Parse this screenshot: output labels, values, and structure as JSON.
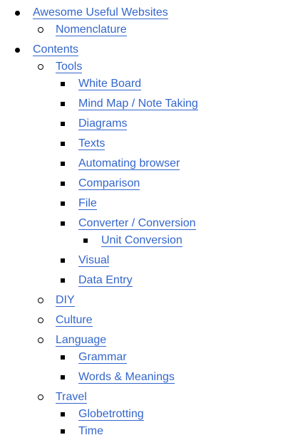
{
  "toc": {
    "items": [
      {
        "label": "Awesome Useful Websites",
        "level": 0,
        "marker": "disc"
      },
      {
        "label": "Nomenclature",
        "level": 1,
        "marker": "circle"
      },
      {
        "label": "Contents",
        "level": 0,
        "marker": "disc"
      },
      {
        "label": "Tools",
        "level": 1,
        "marker": "circle"
      },
      {
        "label": "White Board",
        "level": 2,
        "marker": "square"
      },
      {
        "label": "Mind Map / Note Taking",
        "level": 2,
        "marker": "square"
      },
      {
        "label": "Diagrams",
        "level": 2,
        "marker": "square"
      },
      {
        "label": "Texts",
        "level": 2,
        "marker": "square"
      },
      {
        "label": "Automating browser",
        "level": 2,
        "marker": "square"
      },
      {
        "label": "Comparison",
        "level": 2,
        "marker": "square"
      },
      {
        "label": "File",
        "level": 2,
        "marker": "square"
      },
      {
        "label": "Converter / Conversion",
        "level": 2,
        "marker": "square"
      },
      {
        "label": "Unit Conversion",
        "level": 3,
        "marker": "square"
      },
      {
        "label": "Visual",
        "level": 2,
        "marker": "square"
      },
      {
        "label": "Data Entry",
        "level": 2,
        "marker": "square"
      },
      {
        "label": "DIY",
        "level": 1,
        "marker": "circle"
      },
      {
        "label": "Culture",
        "level": 1,
        "marker": "circle"
      },
      {
        "label": "Language",
        "level": 1,
        "marker": "circle"
      },
      {
        "label": "Grammar",
        "level": 2,
        "marker": "square"
      },
      {
        "label": "Words & Meanings",
        "level": 2,
        "marker": "square"
      },
      {
        "label": "Travel",
        "level": 1,
        "marker": "circle"
      },
      {
        "label": "Globetrotting",
        "level": 2,
        "marker": "square"
      },
      {
        "label": "Time",
        "level": 2,
        "marker": "square"
      }
    ]
  },
  "colors": {
    "link": "#3366cc",
    "bullet": "#000000",
    "background": "#ffffff"
  }
}
